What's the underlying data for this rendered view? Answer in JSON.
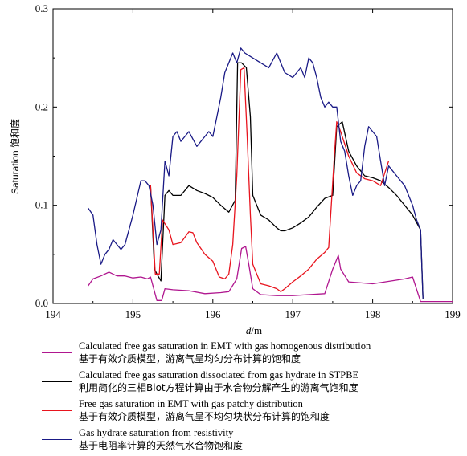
{
  "chart_data": {
    "type": "line",
    "title": "",
    "xlabel_var": "d",
    "xlabel_unit": "/m",
    "ylabel": "Saturation 饱和度",
    "xlim": [
      194,
      199
    ],
    "ylim": [
      0,
      0.3
    ],
    "xticks": [
      194,
      195,
      196,
      197,
      198,
      199
    ],
    "yticks": [
      0.0,
      0.1,
      0.2,
      0.3
    ],
    "xtick_labels": [
      "194",
      "195",
      "196",
      "197",
      "198",
      "199"
    ],
    "ytick_labels": [
      "0.0",
      "0.1",
      "0.2",
      "0.3"
    ],
    "grid": false,
    "legend_position": "bottom",
    "series": [
      {
        "name": "Calculated free gas saturation in EMT with gas homogenous distribution",
        "name_zh": "基于有效介质模型，游离气呈均匀分布计算的饱和度",
        "color": "#b0168f",
        "x": [
          194.44,
          194.5,
          194.6,
          194.7,
          194.8,
          194.9,
          195.0,
          195.1,
          195.18,
          195.22,
          195.3,
          195.36,
          195.4,
          195.5,
          195.7,
          195.9,
          196.1,
          196.2,
          196.3,
          196.36,
          196.41,
          196.45,
          196.5,
          196.6,
          196.8,
          197.0,
          197.2,
          197.4,
          197.5,
          197.57,
          197.6,
          197.7,
          198.0,
          198.4,
          198.5,
          198.6,
          199.0
        ],
        "y": [
          0.018,
          0.025,
          0.028,
          0.032,
          0.028,
          0.028,
          0.026,
          0.027,
          0.025,
          0.027,
          0.003,
          0.003,
          0.015,
          0.014,
          0.013,
          0.01,
          0.011,
          0.012,
          0.025,
          0.056,
          0.058,
          0.04,
          0.015,
          0.009,
          0.008,
          0.008,
          0.009,
          0.01,
          0.035,
          0.049,
          0.035,
          0.022,
          0.02,
          0.025,
          0.027,
          0.002,
          0.002
        ]
      },
      {
        "name": "Calculated free gas saturation dissociated from gas hydrate in STPBE",
        "name_zh": "利用简化的三相Biot方程计算由于水合物分解产生的游离气饱和度",
        "color": "#000000",
        "x": [
          195.2,
          195.22,
          195.27,
          195.3,
          195.35,
          195.4,
          195.45,
          195.5,
          195.6,
          195.7,
          195.8,
          195.9,
          196.0,
          196.1,
          196.2,
          196.28,
          196.31,
          196.36,
          196.42,
          196.47,
          196.5,
          196.6,
          196.7,
          196.8,
          196.85,
          196.9,
          197.0,
          197.1,
          197.2,
          197.3,
          197.4,
          197.5,
          197.55,
          197.62,
          197.7,
          197.8,
          197.9,
          198.0,
          198.1,
          198.2,
          198.3,
          198.4,
          198.5,
          198.6,
          198.63
        ],
        "y": [
          0.12,
          0.12,
          0.035,
          0.03,
          0.023,
          0.11,
          0.115,
          0.11,
          0.11,
          0.12,
          0.115,
          0.112,
          0.108,
          0.1,
          0.093,
          0.105,
          0.245,
          0.245,
          0.24,
          0.19,
          0.11,
          0.09,
          0.085,
          0.077,
          0.074,
          0.074,
          0.077,
          0.082,
          0.088,
          0.098,
          0.107,
          0.11,
          0.18,
          0.185,
          0.155,
          0.14,
          0.13,
          0.128,
          0.125,
          0.118,
          0.11,
          0.1,
          0.09,
          0.075,
          0.005
        ]
      },
      {
        "name": "Free gas saturation in EMT with gas patchy distribution",
        "name_zh": "基于有效介质模型，游离气呈不均匀块状分布计算的饱和度",
        "color": "#e8141e",
        "x": [
          195.2,
          195.22,
          195.28,
          195.33,
          195.37,
          195.45,
          195.5,
          195.6,
          195.7,
          195.75,
          195.8,
          195.9,
          196.0,
          196.08,
          196.15,
          196.2,
          196.25,
          196.3,
          196.35,
          196.39,
          196.43,
          196.47,
          196.5,
          196.6,
          196.7,
          196.8,
          196.85,
          196.9,
          197.0,
          197.1,
          197.2,
          197.3,
          197.4,
          197.45,
          197.52,
          197.55,
          197.6,
          197.7,
          197.8,
          197.9,
          198.0,
          198.1,
          198.2
        ],
        "y": [
          0.12,
          0.12,
          0.03,
          0.03,
          0.085,
          0.075,
          0.06,
          0.062,
          0.073,
          0.072,
          0.062,
          0.05,
          0.043,
          0.027,
          0.025,
          0.03,
          0.06,
          0.13,
          0.238,
          0.24,
          0.17,
          0.09,
          0.04,
          0.02,
          0.018,
          0.015,
          0.012,
          0.015,
          0.022,
          0.028,
          0.035,
          0.045,
          0.052,
          0.057,
          0.15,
          0.185,
          0.175,
          0.15,
          0.133,
          0.127,
          0.125,
          0.12,
          0.145
        ]
      },
      {
        "name": "Gas hydrate saturation from resistivity",
        "name_zh": "基于电阻率计算的天然气水合物饱和度",
        "color": "#1a1a86",
        "x": [
          194.44,
          194.5,
          194.55,
          194.6,
          194.65,
          194.7,
          194.75,
          194.8,
          194.85,
          194.9,
          195.0,
          195.1,
          195.15,
          195.2,
          195.25,
          195.3,
          195.35,
          195.4,
          195.45,
          195.5,
          195.55,
          195.6,
          195.65,
          195.7,
          195.8,
          195.9,
          195.95,
          196.0,
          196.05,
          196.1,
          196.15,
          196.2,
          196.25,
          196.3,
          196.35,
          196.4,
          196.5,
          196.6,
          196.7,
          196.8,
          196.9,
          197.0,
          197.1,
          197.15,
          197.2,
          197.25,
          197.3,
          197.35,
          197.4,
          197.45,
          197.5,
          197.55,
          197.6,
          197.65,
          197.7,
          197.75,
          197.8,
          197.85,
          197.9,
          197.95,
          198.0,
          198.05,
          198.1,
          198.15,
          198.2,
          198.3,
          198.4,
          198.5,
          198.55,
          198.6,
          198.63
        ],
        "y": [
          0.097,
          0.09,
          0.06,
          0.04,
          0.05,
          0.055,
          0.065,
          0.06,
          0.055,
          0.06,
          0.09,
          0.125,
          0.125,
          0.12,
          0.1,
          0.06,
          0.075,
          0.145,
          0.13,
          0.17,
          0.175,
          0.165,
          0.17,
          0.175,
          0.16,
          0.17,
          0.175,
          0.17,
          0.19,
          0.21,
          0.235,
          0.245,
          0.255,
          0.245,
          0.26,
          0.255,
          0.25,
          0.245,
          0.24,
          0.255,
          0.235,
          0.23,
          0.24,
          0.23,
          0.25,
          0.245,
          0.23,
          0.21,
          0.2,
          0.205,
          0.2,
          0.2,
          0.165,
          0.155,
          0.13,
          0.11,
          0.12,
          0.125,
          0.16,
          0.18,
          0.175,
          0.17,
          0.145,
          0.12,
          0.14,
          0.13,
          0.12,
          0.1,
          0.085,
          0.075,
          0.005
        ]
      }
    ]
  }
}
